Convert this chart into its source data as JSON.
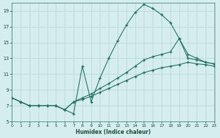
{
  "xlabel": "Humidex (Indice chaleur)",
  "bg_color": "#d5eeed",
  "grid_color": "#b8d8d5",
  "line_color": "#1e6e60",
  "xlim": [
    0,
    23
  ],
  "ylim": [
    5,
    20
  ],
  "yticks": [
    5,
    7,
    9,
    11,
    13,
    15,
    17,
    19
  ],
  "xticks": [
    0,
    1,
    2,
    3,
    4,
    5,
    6,
    7,
    8,
    9,
    10,
    11,
    12,
    13,
    14,
    15,
    16,
    17,
    18,
    19,
    20,
    21,
    22,
    23
  ],
  "line1_x": [
    0,
    1,
    2,
    3,
    4,
    5,
    6,
    7,
    8,
    9,
    10,
    11,
    12,
    13,
    14,
    15,
    16,
    17,
    18,
    19,
    20,
    21,
    22,
    23
  ],
  "line1_y": [
    8,
    7.5,
    7,
    7,
    7,
    7,
    6.5,
    6.0,
    12.0,
    7.5,
    10.5,
    13.0,
    15.2,
    17.2,
    18.8,
    19.8,
    19.3,
    18.5,
    17.5,
    15.5,
    13.5,
    13.0,
    12.5,
    12.3
  ],
  "line2_x": [
    0,
    1,
    2,
    3,
    4,
    5,
    6,
    7,
    8,
    9,
    10,
    11,
    12,
    13,
    14,
    15,
    16,
    17,
    18,
    19,
    20,
    21,
    22,
    23
  ],
  "line2_y": [
    8,
    7.5,
    7,
    7,
    7,
    7,
    6.5,
    7.5,
    8.0,
    8.5,
    9.2,
    9.8,
    10.5,
    11.2,
    12.0,
    12.8,
    13.2,
    13.5,
    13.8,
    15.5,
    13.0,
    12.8,
    12.5,
    12.3
  ],
  "line3_x": [
    0,
    1,
    2,
    3,
    4,
    5,
    6,
    7,
    8,
    9,
    10,
    11,
    12,
    13,
    14,
    15,
    16,
    17,
    18,
    19,
    20,
    21,
    22,
    23
  ],
  "line3_y": [
    8,
    7.5,
    7,
    7,
    7,
    7,
    6.5,
    7.5,
    7.8,
    8.2,
    8.7,
    9.2,
    9.7,
    10.2,
    10.7,
    11.2,
    11.5,
    11.8,
    12.0,
    12.2,
    12.5,
    12.3,
    12.2,
    12.0
  ]
}
